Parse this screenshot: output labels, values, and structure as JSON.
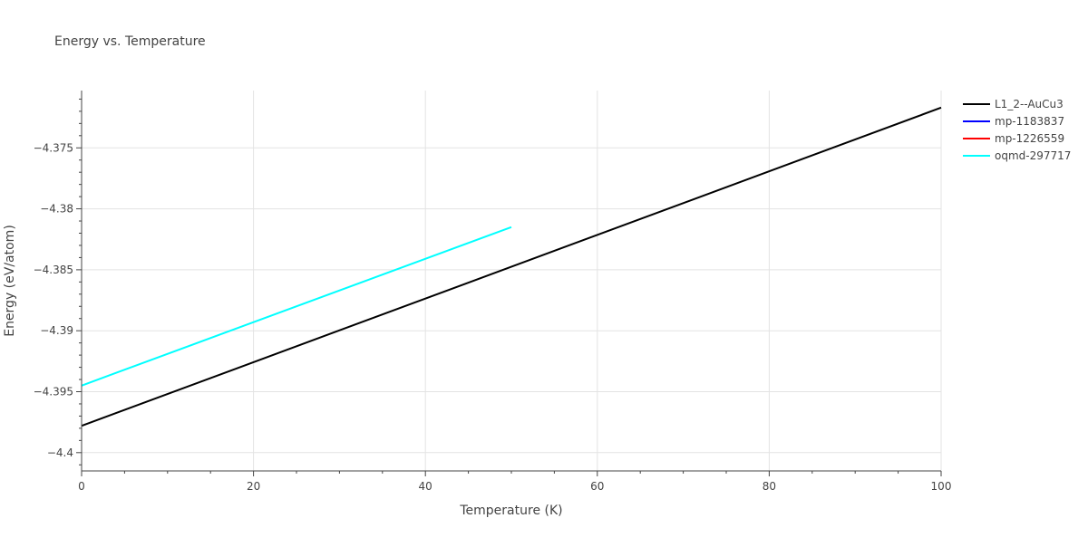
{
  "chart_data": {
    "type": "line",
    "title": "Energy vs. Temperature",
    "xlabel": "Temperature (K)",
    "ylabel": "Energy (eV/atom)",
    "xlim": [
      0,
      100
    ],
    "ylim": [
      -4.4015,
      -4.3703
    ],
    "x_ticks": [
      0,
      20,
      40,
      60,
      80,
      100
    ],
    "x_tick_labels": [
      "0",
      "20",
      "40",
      "60",
      "80",
      "100"
    ],
    "y_ticks": [
      -4.4,
      -4.395,
      -4.39,
      -4.385,
      -4.38,
      -4.375
    ],
    "y_tick_labels": [
      "−4.4",
      "−4.395",
      "−4.39",
      "−4.385",
      "−4.38",
      "−4.375"
    ],
    "grid": true,
    "legend_position": "top-right",
    "series": [
      {
        "name": "L1_2--AuCu3",
        "color": "#000000",
        "x": [
          0,
          100
        ],
        "y": [
          -4.3978,
          -4.3717
        ]
      },
      {
        "name": "mp-1183837",
        "color": "#0000ff",
        "x": [],
        "y": []
      },
      {
        "name": "mp-1226559",
        "color": "#ff0000",
        "x": [],
        "y": []
      },
      {
        "name": "oqmd-297717",
        "color": "#00ffff",
        "x": [
          0,
          50
        ],
        "y": [
          -4.3945,
          -4.3815
        ]
      }
    ]
  }
}
